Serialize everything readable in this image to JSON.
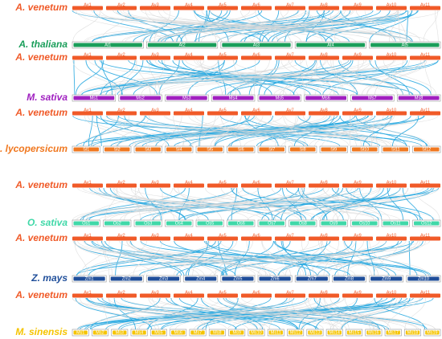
{
  "panels": [
    {
      "top": {
        "label": "A. venetum",
        "chromosomes": [
          "Av1",
          "Av2",
          "Av3",
          "Av4",
          "Av5",
          "Av6",
          "Av7",
          "Av8",
          "Av9",
          "Av10",
          "Av11"
        ]
      },
      "bottom": {
        "label": "A. thaliana",
        "chromosomes": [
          "At1",
          "At2",
          "At3",
          "At4",
          "At5"
        ]
      }
    },
    {
      "top": {
        "label": "A. venetum",
        "chromosomes": [
          "Av1",
          "Av2",
          "Av3",
          "Av4",
          "Av5",
          "Av6",
          "Av7",
          "Av8",
          "Av9",
          "Av10",
          "Av11"
        ]
      },
      "bottom": {
        "label": "M. sativa",
        "chromosomes": [
          "Ms1",
          "Ms2",
          "Ms3",
          "Ms4",
          "Ms5",
          "Ms6",
          "Ms7",
          "Ms8"
        ]
      }
    },
    {
      "top": {
        "label": "A. venetum",
        "chromosomes": [
          "Av1",
          "Av2",
          "Av3",
          "Av4",
          "Av5",
          "Av6",
          "Av7",
          "Av8",
          "Av9",
          "Av10",
          "Av11"
        ]
      },
      "bottom": {
        "label": "S. lycopersicum",
        "chromosomes": [
          "Sl1",
          "Sl2",
          "Sl3",
          "Sl4",
          "Sl5",
          "Sl6",
          "Sl7",
          "Sl8",
          "Sl9",
          "Sl10",
          "Sl11",
          "Sl12"
        ]
      }
    },
    {
      "top": {
        "label": "A. venetum",
        "chromosomes": [
          "Av1",
          "Av2",
          "Av3",
          "Av4",
          "Av5",
          "Av6",
          "Av7",
          "Av8",
          "Av9",
          "Av10",
          "Av11"
        ]
      },
      "bottom": {
        "label": "O. sativa",
        "chromosomes": [
          "Os1",
          "Os2",
          "Os3",
          "Os4",
          "Os5",
          "Os6",
          "Os7",
          "Os8",
          "Os9",
          "Os10",
          "Os11",
          "Os12"
        ]
      }
    },
    {
      "top": {
        "label": "A. venetum",
        "chromosomes": [
          "Av1",
          "Av2",
          "Av3",
          "Av4",
          "Av5",
          "Av6",
          "Av7",
          "Av8",
          "Av9",
          "Av10",
          "Av11"
        ]
      },
      "bottom": {
        "label": "Z. mays",
        "chromosomes": [
          "Zm1",
          "Zm2",
          "Zm3",
          "Zm4",
          "Zm5",
          "Zm6",
          "Zm7",
          "Zm8",
          "Zm9",
          "Zm10"
        ]
      }
    },
    {
      "top": {
        "label": "A. venetum",
        "chromosomes": [
          "Av1",
          "Av2",
          "Av3",
          "Av4",
          "Av5",
          "Av6",
          "Av7",
          "Av8",
          "Av9",
          "Av10",
          "Av11"
        ]
      },
      "bottom": {
        "label": "M. sinensis",
        "chromosomes": [
          "Ms1",
          "Ms2",
          "Ms3",
          "Ms4",
          "Ms5",
          "Ms6",
          "Ms7",
          "Ms8",
          "Ms9",
          "Ms10",
          "Ms11",
          "Ms12",
          "Ms13",
          "Ms14",
          "Ms15",
          "Ms16",
          "Ms17",
          "Ms18",
          "Ms19"
        ]
      }
    }
  ]
}
